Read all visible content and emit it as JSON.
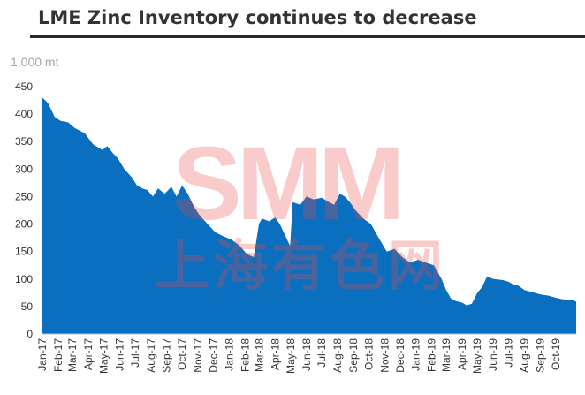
{
  "title": "LME Zinc Inventory continues to decrease",
  "watermark": {
    "latin": "SMM",
    "cjk": "上海有色网"
  },
  "colors": {
    "fill": "#0a6fbf",
    "title_rule": "#2b2b2b"
  },
  "chart_data": {
    "type": "area",
    "title": "LME Zinc Inventory continues to decrease",
    "ylabel": "1,000 mt",
    "xlabel": "",
    "ylim": [
      0,
      450
    ],
    "yticks": [
      0,
      50,
      100,
      150,
      200,
      250,
      300,
      350,
      400,
      450
    ],
    "grid": false,
    "legend": "none",
    "x_range": [
      "2017-01-01",
      "2019-11-10"
    ],
    "xticks": [
      "Jan-17",
      "Feb-17",
      "Mar-17",
      "Apr-17",
      "May-17",
      "Jun-17",
      "Jul-17",
      "Aug-17",
      "Sep-17",
      "Oct-17",
      "Nov-17",
      "Dec-17",
      "Jan-18",
      "Feb-18",
      "Mar-18",
      "Apr-18",
      "May-18",
      "Jun-18",
      "Jul-18",
      "Aug-18",
      "Sep-18",
      "Oct-18",
      "Nov-18",
      "Dec-18",
      "Jan-19",
      "Feb-19",
      "Mar-19",
      "Apr-19",
      "May-19",
      "Jun-19",
      "Jul-19",
      "Aug-19",
      "Sep-19",
      "Oct-19"
    ],
    "series": [
      {
        "x": [
          "2017-01-01",
          "2017-01-12",
          "2017-01-25",
          "2017-02-05",
          "2017-02-20",
          "2017-03-05",
          "2017-03-25",
          "2017-04-10",
          "2017-04-28",
          "2017-05-08",
          "2017-05-18",
          "2017-05-28",
          "2017-06-10",
          "2017-06-25",
          "2017-07-05",
          "2017-07-15",
          "2017-07-25",
          "2017-08-05",
          "2017-08-15",
          "2017-08-28",
          "2017-09-10",
          "2017-09-20",
          "2017-10-01",
          "2017-10-12",
          "2017-10-25",
          "2017-11-05",
          "2017-11-20",
          "2017-12-05",
          "2017-12-20",
          "2018-01-05",
          "2018-01-20",
          "2018-02-05",
          "2018-02-18",
          "2018-02-28",
          "2018-03-06",
          "2018-03-20",
          "2018-04-01",
          "2018-04-10",
          "2018-04-20",
          "2018-04-30",
          "2018-05-05",
          "2018-05-20",
          "2018-06-01",
          "2018-06-15",
          "2018-07-01",
          "2018-07-15",
          "2018-07-25",
          "2018-08-05",
          "2018-08-15",
          "2018-08-25",
          "2018-09-05",
          "2018-09-20",
          "2018-10-05",
          "2018-10-20",
          "2018-11-05",
          "2018-11-20",
          "2018-12-05",
          "2018-12-20",
          "2019-01-05",
          "2019-01-20",
          "2019-02-05",
          "2019-02-20",
          "2019-03-01",
          "2019-03-10",
          "2019-03-20",
          "2019-04-01",
          "2019-04-10",
          "2019-04-20",
          "2019-05-01",
          "2019-05-10",
          "2019-05-20",
          "2019-06-01",
          "2019-06-20",
          "2019-07-01",
          "2019-07-10",
          "2019-07-20",
          "2019-08-01",
          "2019-08-20",
          "2019-09-01",
          "2019-09-15",
          "2019-10-01",
          "2019-10-15",
          "2019-11-01",
          "2019-11-10"
        ],
        "values": [
          430,
          420,
          395,
          388,
          385,
          375,
          365,
          345,
          335,
          342,
          330,
          320,
          300,
          285,
          270,
          265,
          262,
          250,
          265,
          255,
          268,
          250,
          270,
          255,
          230,
          215,
          200,
          185,
          178,
          172,
          162,
          145,
          140,
          200,
          210,
          205,
          212,
          200,
          180,
          160,
          240,
          235,
          250,
          245,
          248,
          240,
          235,
          255,
          250,
          240,
          225,
          210,
          200,
          175,
          150,
          155,
          140,
          130,
          135,
          130,
          125,
          100,
          80,
          65,
          60,
          57,
          52,
          55,
          75,
          85,
          105,
          100,
          98,
          95,
          90,
          88,
          80,
          75,
          72,
          70,
          66,
          63,
          62,
          59
        ]
      }
    ]
  }
}
